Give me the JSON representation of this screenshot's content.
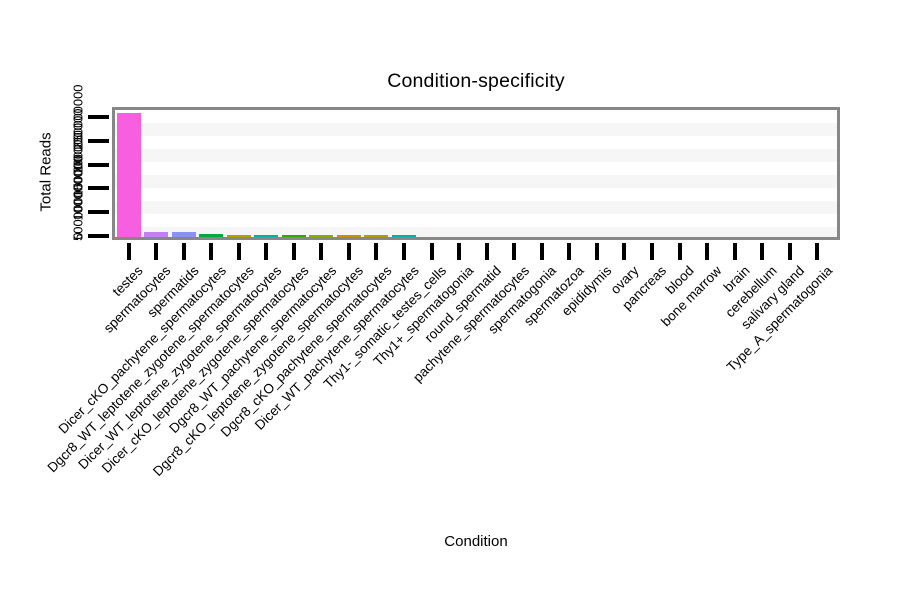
{
  "title": "Condition-specificity",
  "axes": {
    "x_label": "Condition",
    "y_label": "Total Reads"
  },
  "styles": {
    "panel_border": "#878787",
    "panel_stripe": "#f6f6f6",
    "tick_color": "#000000",
    "background": "#ffffff"
  },
  "chart_data": {
    "type": "bar",
    "title": "Condition-specificity",
    "xlabel": "Condition",
    "ylabel": "Total Reads",
    "ylim": [
      0,
      260000000
    ],
    "yticks": [
      0,
      50000000,
      100000000,
      150000000,
      200000000,
      250000000
    ],
    "grid": "faint horizontal stripes inside panel",
    "legend_position": "none",
    "x_tick_label_rotation_deg": 45,
    "y_tick_label_rotation_deg": 90,
    "categories": [
      "testes",
      "spermatocytes",
      "spermatids",
      "Dicer_cKO_pachytene_spermatocytes",
      "Dgcr8_WT_leptotene_zygotene_spermatocytes",
      "Dicer_WT_leptotene_zygotene_spermatocytes",
      "Dicer_cKO_leptotene_zygotene_spermatocytes",
      "Dgcr8_WT_pachytene_spermatocytes",
      "Dgcr8_cKO_leptotene_zygotene_spermatocytes",
      "Dgcr8_cKO_pachytene_spermatocytes",
      "Dicer_WT_pachytene_spermatocytes",
      "Thy1-_somatic_testes_cells",
      "Thy1+_spermatogonia",
      "round_spermatid",
      "pachytene_spermatocytes",
      "spermatogonia",
      "spermatozoa",
      "epididymis",
      "ovary",
      "pancreas",
      "blood",
      "bone marrow",
      "brain",
      "cerebellum",
      "salivary gland",
      "Type_A_spermatogonia"
    ],
    "values": [
      260000000,
      11000000,
      10500000,
      5500000,
      3500000,
      3500000,
      4000000,
      4000000,
      3800000,
      3800000,
      3200000,
      0,
      0,
      0,
      0,
      0,
      0,
      0,
      0,
      0,
      0,
      0,
      0,
      0,
      0,
      0
    ],
    "bar_colors": [
      "#F75FE0",
      "#C47FF0",
      "#8A92F0",
      "#00A843",
      "#B0A000",
      "#00B39E",
      "#2FA900",
      "#86AE00",
      "#C79200",
      "#B09D00",
      "#00B3A4",
      null,
      null,
      null,
      null,
      null,
      null,
      null,
      null,
      null,
      null,
      null,
      null,
      null,
      null,
      null
    ]
  }
}
